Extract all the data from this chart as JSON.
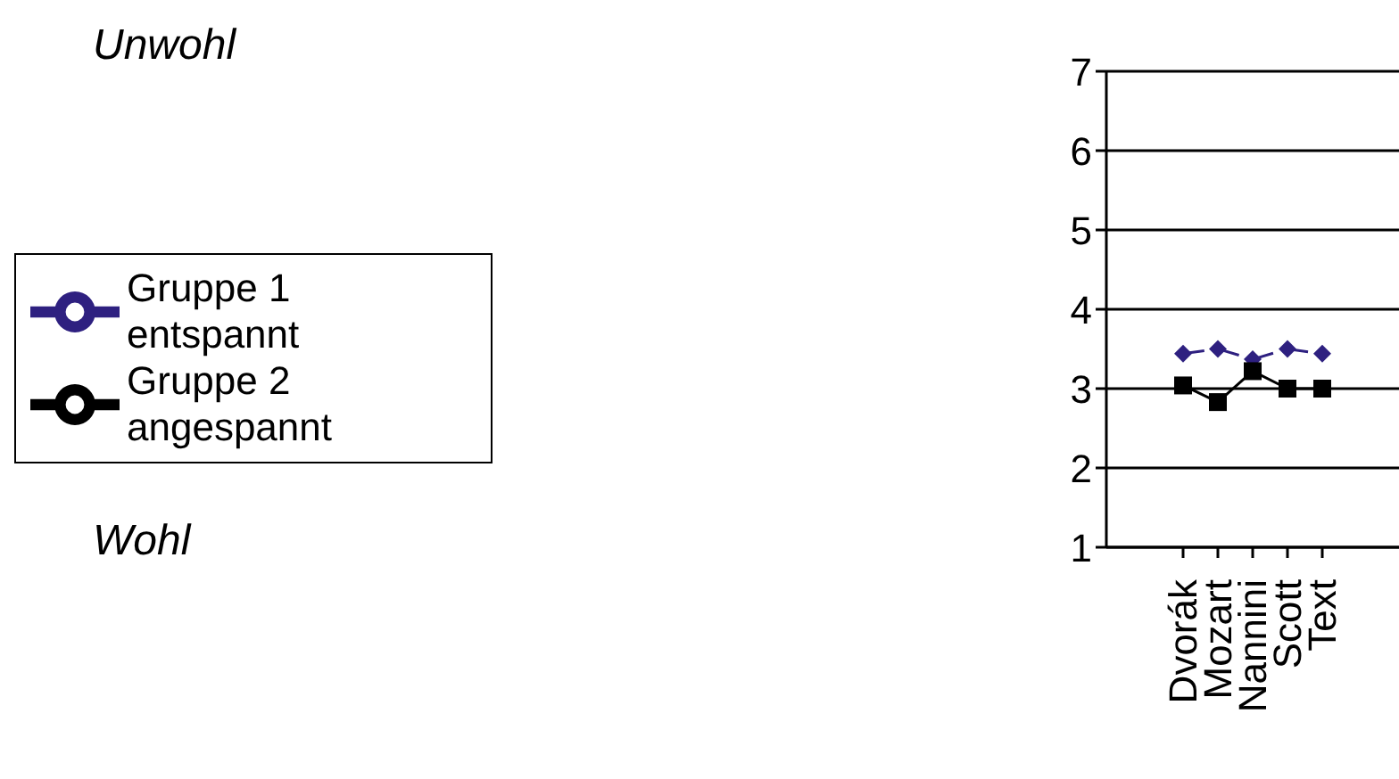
{
  "chart_data": {
    "type": "line",
    "categories": [
      "Dvorák",
      "Mozart",
      "Nannini",
      "Scott",
      "Text"
    ],
    "series": [
      {
        "name": "Gruppe 1 entspannt",
        "color": "#2e2080",
        "values": [
          3.44,
          3.5,
          3.37,
          3.5,
          3.44
        ],
        "marker": "diamond",
        "line_style": "dashed"
      },
      {
        "name": "Gruppe 2 angespannt",
        "color": "#000000",
        "values": [
          3.04,
          2.83,
          3.22,
          3.0,
          3.0
        ],
        "marker": "square",
        "line_style": "solid"
      }
    ],
    "ylim": [
      1,
      7
    ],
    "yticks": [
      1,
      2,
      3,
      4,
      5,
      6,
      7
    ],
    "grid": "y",
    "legend": "left",
    "annotations": [
      "Unwohl",
      "Wohl"
    ]
  }
}
